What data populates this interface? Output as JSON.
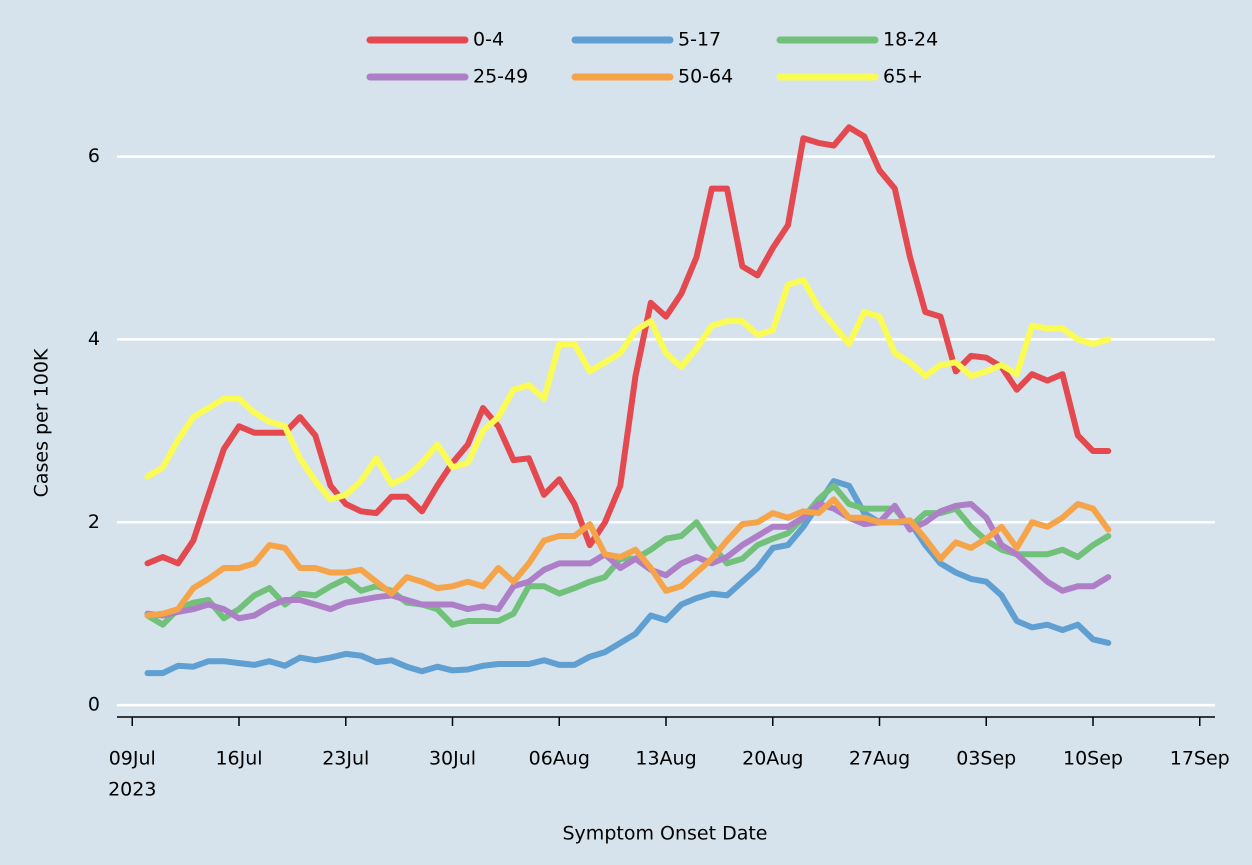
{
  "chart_data": {
    "type": "line",
    "x_label": "Symptom Onset Date",
    "y_label": "Cases per 100K",
    "x": [
      "2023-07-10",
      "2023-07-11",
      "2023-07-12",
      "2023-07-13",
      "2023-07-14",
      "2023-07-15",
      "2023-07-16",
      "2023-07-17",
      "2023-07-18",
      "2023-07-19",
      "2023-07-20",
      "2023-07-21",
      "2023-07-22",
      "2023-07-23",
      "2023-07-24",
      "2023-07-25",
      "2023-07-26",
      "2023-07-27",
      "2023-07-28",
      "2023-07-29",
      "2023-07-30",
      "2023-07-31",
      "2023-08-01",
      "2023-08-02",
      "2023-08-03",
      "2023-08-04",
      "2023-08-05",
      "2023-08-06",
      "2023-08-07",
      "2023-08-08",
      "2023-08-09",
      "2023-08-10",
      "2023-08-11",
      "2023-08-12",
      "2023-08-13",
      "2023-08-14",
      "2023-08-15",
      "2023-08-16",
      "2023-08-17",
      "2023-08-18",
      "2023-08-19",
      "2023-08-20",
      "2023-08-21",
      "2023-08-22",
      "2023-08-23",
      "2023-08-24",
      "2023-08-25",
      "2023-08-26",
      "2023-08-27",
      "2023-08-28",
      "2023-08-29",
      "2023-08-30",
      "2023-08-31",
      "2023-09-01",
      "2023-09-02",
      "2023-09-03",
      "2023-09-04",
      "2023-09-05",
      "2023-09-06",
      "2023-09-07",
      "2023-09-08",
      "2023-09-09",
      "2023-09-10",
      "2023-09-11"
    ],
    "series": [
      {
        "name": "0-4",
        "color": "#e3494f",
        "values": [
          1.55,
          1.62,
          1.55,
          1.8,
          2.3,
          2.8,
          3.05,
          2.98,
          2.98,
          2.98,
          3.15,
          2.95,
          2.4,
          2.2,
          2.12,
          2.1,
          2.28,
          2.28,
          2.12,
          2.4,
          2.65,
          2.85,
          3.25,
          3.05,
          2.68,
          2.7,
          2.3,
          2.47,
          2.2,
          1.75,
          2.0,
          2.4,
          3.6,
          4.4,
          4.25,
          4.5,
          4.9,
          5.65,
          5.65,
          4.8,
          4.7,
          5.0,
          5.25,
          6.2,
          6.15,
          6.12,
          6.32,
          6.22,
          5.85,
          5.65,
          4.9,
          4.3,
          4.25,
          3.65,
          3.82,
          3.8,
          3.7,
          3.45,
          3.62,
          3.55,
          3.62,
          2.95,
          2.78,
          2.78
        ]
      },
      {
        "name": "5-17",
        "color": "#5f9fd2",
        "values": [
          0.35,
          0.35,
          0.43,
          0.42,
          0.48,
          0.48,
          0.46,
          0.44,
          0.48,
          0.43,
          0.52,
          0.49,
          0.52,
          0.56,
          0.54,
          0.47,
          0.49,
          0.42,
          0.37,
          0.42,
          0.38,
          0.39,
          0.43,
          0.45,
          0.45,
          0.45,
          0.49,
          0.44,
          0.44,
          0.53,
          0.58,
          0.68,
          0.78,
          0.98,
          0.93,
          1.1,
          1.17,
          1.22,
          1.2,
          1.35,
          1.5,
          1.72,
          1.75,
          1.95,
          2.2,
          2.45,
          2.4,
          2.1,
          2.0,
          2.0,
          2.0,
          1.75,
          1.55,
          1.45,
          1.38,
          1.35,
          1.2,
          0.92,
          0.85,
          0.88,
          0.82,
          0.88,
          0.72,
          0.68
        ]
      },
      {
        "name": "18-24",
        "color": "#72c17a",
        "values": [
          0.98,
          0.88,
          1.05,
          1.12,
          1.15,
          0.95,
          1.05,
          1.2,
          1.28,
          1.1,
          1.22,
          1.2,
          1.3,
          1.38,
          1.25,
          1.3,
          1.25,
          1.12,
          1.1,
          1.05,
          0.88,
          0.92,
          0.92,
          0.92,
          1.0,
          1.3,
          1.3,
          1.22,
          1.28,
          1.35,
          1.4,
          1.6,
          1.6,
          1.7,
          1.82,
          1.85,
          2.0,
          1.75,
          1.55,
          1.6,
          1.75,
          1.82,
          1.88,
          2.05,
          2.25,
          2.4,
          2.2,
          2.15,
          2.15,
          2.15,
          1.95,
          2.1,
          2.1,
          2.15,
          1.95,
          1.8,
          1.7,
          1.65,
          1.65,
          1.65,
          1.7,
          1.62,
          1.75,
          1.85
        ]
      },
      {
        "name": "25-49",
        "color": "#ae7fc7",
        "values": [
          1.0,
          0.98,
          1.02,
          1.05,
          1.1,
          1.05,
          0.95,
          0.98,
          1.08,
          1.15,
          1.15,
          1.1,
          1.05,
          1.12,
          1.15,
          1.18,
          1.2,
          1.15,
          1.1,
          1.1,
          1.1,
          1.05,
          1.08,
          1.05,
          1.3,
          1.35,
          1.48,
          1.55,
          1.55,
          1.55,
          1.65,
          1.5,
          1.6,
          1.48,
          1.42,
          1.55,
          1.62,
          1.55,
          1.62,
          1.75,
          1.85,
          1.95,
          1.95,
          2.05,
          2.2,
          2.15,
          2.05,
          1.98,
          2.0,
          2.18,
          1.92,
          2.0,
          2.12,
          2.18,
          2.2,
          2.05,
          1.75,
          1.65,
          1.5,
          1.35,
          1.25,
          1.3,
          1.3,
          1.4
        ]
      },
      {
        "name": "50-64",
        "color": "#f6a44a",
        "values": [
          0.98,
          1.0,
          1.05,
          1.28,
          1.38,
          1.5,
          1.5,
          1.55,
          1.75,
          1.72,
          1.5,
          1.5,
          1.45,
          1.45,
          1.48,
          1.35,
          1.22,
          1.4,
          1.35,
          1.28,
          1.3,
          1.35,
          1.3,
          1.5,
          1.35,
          1.55,
          1.8,
          1.85,
          1.85,
          1.98,
          1.65,
          1.62,
          1.7,
          1.5,
          1.25,
          1.3,
          1.45,
          1.6,
          1.8,
          1.98,
          2.0,
          2.1,
          2.05,
          2.12,
          2.1,
          2.25,
          2.05,
          2.05,
          2.0,
          2.0,
          2.02,
          1.82,
          1.6,
          1.78,
          1.72,
          1.82,
          1.95,
          1.72,
          2.0,
          1.95,
          2.05,
          2.2,
          2.15,
          1.92
        ]
      },
      {
        "name": "65+",
        "color": "#fbfb56",
        "values": [
          2.5,
          2.6,
          2.9,
          3.15,
          3.25,
          3.35,
          3.35,
          3.2,
          3.1,
          3.05,
          2.7,
          2.45,
          2.25,
          2.3,
          2.45,
          2.7,
          2.42,
          2.5,
          2.65,
          2.85,
          2.6,
          2.65,
          3.0,
          3.15,
          3.45,
          3.5,
          3.35,
          3.95,
          3.95,
          3.65,
          3.75,
          3.85,
          4.1,
          4.2,
          3.85,
          3.7,
          3.9,
          4.15,
          4.2,
          4.2,
          4.05,
          4.1,
          4.6,
          4.65,
          4.35,
          4.15,
          3.95,
          4.3,
          4.25,
          3.85,
          3.75,
          3.6,
          3.72,
          3.75,
          3.6,
          3.65,
          3.72,
          3.62,
          4.15,
          4.12,
          4.12,
          4.0,
          3.95,
          4.0
        ]
      }
    ],
    "xlim": [
      "2023-07-08",
      "2023-09-18"
    ],
    "xticks": [
      {
        "value": "2023-07-09",
        "label": "09Jul"
      },
      {
        "value": "2023-07-16",
        "label": "16Jul"
      },
      {
        "value": "2023-07-23",
        "label": "23Jul"
      },
      {
        "value": "2023-07-30",
        "label": "30Jul"
      },
      {
        "value": "2023-08-06",
        "label": "06Aug"
      },
      {
        "value": "2023-08-13",
        "label": "13Aug"
      },
      {
        "value": "2023-08-20",
        "label": "20Aug"
      },
      {
        "value": "2023-08-27",
        "label": "27Aug"
      },
      {
        "value": "2023-09-03",
        "label": "03Sep"
      },
      {
        "value": "2023-09-10",
        "label": "10Sep"
      },
      {
        "value": "2023-09-17",
        "label": "17Sep"
      }
    ],
    "x_tick_year": "2023",
    "ylim": [
      -0.13,
      6.4
    ],
    "yticks": [
      0,
      2,
      4,
      6
    ],
    "grid": true,
    "legend": "top"
  }
}
